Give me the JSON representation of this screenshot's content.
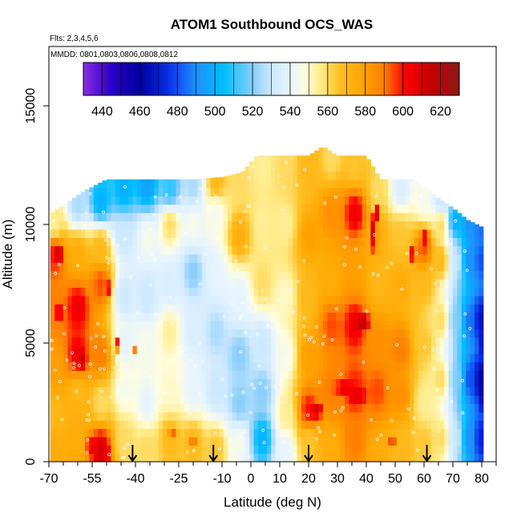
{
  "chart_data": {
    "type": "heatmap",
    "title": "ATOM1 Southbound OCS_WAS",
    "flights_note": "Flts: 2,3,4,5,6",
    "dates_note": "MMDD: 0801,0803,0806,0808,0812",
    "xlabel": "Latitude (deg N)",
    "ylabel": "Altitude (m)",
    "xlim": [
      -70,
      85
    ],
    "ylim": [
      0,
      17500
    ],
    "x_ticks": [
      -70,
      -55,
      -40,
      -25,
      -10,
      0,
      10,
      20,
      30,
      40,
      50,
      60,
      70,
      80
    ],
    "x_minor_ticks": [
      -65,
      -60,
      -50,
      -45,
      -35,
      -30,
      -20,
      -15,
      -5,
      5,
      15,
      25,
      35,
      45,
      55,
      65,
      75,
      85
    ],
    "y_ticks": [
      0,
      5000,
      10000,
      15000
    ],
    "colorbar": {
      "min": 430,
      "max": 630,
      "labels": [
        440,
        460,
        480,
        500,
        520,
        540,
        560,
        580,
        600,
        620
      ],
      "stops": [
        {
          "v": 430,
          "c": "#8a2be2"
        },
        {
          "v": 445,
          "c": "#2a00c8"
        },
        {
          "v": 460,
          "c": "#00009a"
        },
        {
          "v": 475,
          "c": "#0a2ee6"
        },
        {
          "v": 490,
          "c": "#1e90ff"
        },
        {
          "v": 505,
          "c": "#00bfff"
        },
        {
          "v": 520,
          "c": "#87cefa"
        },
        {
          "v": 530,
          "c": "#cde8ff"
        },
        {
          "v": 540,
          "c": "#e6f4ff"
        },
        {
          "v": 548,
          "c": "#fffde0"
        },
        {
          "v": 556,
          "c": "#ffec8b"
        },
        {
          "v": 566,
          "c": "#ffc125"
        },
        {
          "v": 578,
          "c": "#ffa500"
        },
        {
          "v": 590,
          "c": "#ff7f00"
        },
        {
          "v": 601,
          "c": "#ff0000"
        },
        {
          "v": 615,
          "c": "#c40000"
        },
        {
          "v": 630,
          "c": "#8b1a1a"
        }
      ]
    },
    "profile_bottoms_lat": [
      -41,
      -13,
      20,
      61
    ],
    "envelope": [
      [
        -70,
        10400
      ],
      [
        -64,
        10900
      ],
      [
        -58,
        11400
      ],
      [
        -50,
        11900
      ],
      [
        -40,
        11900
      ],
      [
        -30,
        11900
      ],
      [
        -20,
        11900
      ],
      [
        -10,
        12000
      ],
      [
        -3,
        12200
      ],
      [
        2,
        12900
      ],
      [
        10,
        12900
      ],
      [
        20,
        12900
      ],
      [
        25,
        13300
      ],
      [
        30,
        12900
      ],
      [
        40,
        12900
      ],
      [
        45,
        11900
      ],
      [
        50,
        11900
      ],
      [
        56,
        11900
      ],
      [
        60,
        11600
      ],
      [
        65,
        11100
      ],
      [
        70,
        10700
      ],
      [
        75,
        10200
      ],
      [
        80,
        9900
      ],
      [
        81,
        5000
      ],
      [
        81,
        0
      ]
    ],
    "anchors": [
      [
        -68,
        500,
        575
      ],
      [
        -68,
        2000,
        570
      ],
      [
        -68,
        4000,
        580
      ],
      [
        -68,
        6500,
        590
      ],
      [
        -68,
        8800,
        600
      ],
      [
        -68,
        10000,
        555
      ],
      [
        -60,
        800,
        575
      ],
      [
        -60,
        3000,
        570
      ],
      [
        -60,
        4500,
        605
      ],
      [
        -60,
        6500,
        605
      ],
      [
        -60,
        8800,
        575
      ],
      [
        -60,
        10800,
        525
      ],
      [
        -52,
        500,
        610
      ],
      [
        -52,
        2500,
        560
      ],
      [
        -52,
        4500,
        590
      ],
      [
        -52,
        7500,
        595
      ],
      [
        -52,
        9000,
        570
      ],
      [
        -52,
        11000,
        500
      ],
      [
        -44,
        800,
        560
      ],
      [
        -44,
        3000,
        545
      ],
      [
        -44,
        5000,
        540
      ],
      [
        -44,
        7000,
        530
      ],
      [
        -44,
        9500,
        530
      ],
      [
        -44,
        11500,
        500
      ],
      [
        -36,
        500,
        560
      ],
      [
        -36,
        2500,
        540
      ],
      [
        -36,
        5000,
        545
      ],
      [
        -36,
        7000,
        530
      ],
      [
        -36,
        9500,
        545
      ],
      [
        -36,
        11600,
        495
      ],
      [
        -28,
        1000,
        570
      ],
      [
        -28,
        3000,
        550
      ],
      [
        -28,
        5500,
        555
      ],
      [
        -28,
        7500,
        535
      ],
      [
        -28,
        10000,
        560
      ],
      [
        -28,
        11500,
        510
      ],
      [
        -20,
        800,
        570
      ],
      [
        -20,
        3000,
        540
      ],
      [
        -20,
        5500,
        535
      ],
      [
        -20,
        8000,
        520
      ],
      [
        -20,
        10000,
        545
      ],
      [
        -20,
        11600,
        525
      ],
      [
        -12,
        600,
        565
      ],
      [
        -12,
        3000,
        530
      ],
      [
        -12,
        5500,
        525
      ],
      [
        -12,
        8000,
        540
      ],
      [
        -12,
        10500,
        545
      ],
      [
        -12,
        11800,
        570
      ],
      [
        -4,
        800,
        545
      ],
      [
        -4,
        2500,
        520
      ],
      [
        -4,
        4500,
        520
      ],
      [
        -4,
        7000,
        540
      ],
      [
        -4,
        9500,
        575
      ],
      [
        -4,
        11800,
        560
      ],
      [
        4,
        1000,
        500
      ],
      [
        4,
        3000,
        520
      ],
      [
        4,
        5000,
        530
      ],
      [
        4,
        7500,
        560
      ],
      [
        4,
        10000,
        555
      ],
      [
        4,
        12500,
        555
      ],
      [
        12,
        500,
        540
      ],
      [
        12,
        2000,
        555
      ],
      [
        12,
        4500,
        545
      ],
      [
        12,
        7000,
        550
      ],
      [
        12,
        10000,
        555
      ],
      [
        12,
        12500,
        560
      ],
      [
        20,
        800,
        565
      ],
      [
        20,
        2200,
        600
      ],
      [
        20,
        4500,
        580
      ],
      [
        20,
        7000,
        570
      ],
      [
        20,
        9500,
        580
      ],
      [
        20,
        12500,
        570
      ],
      [
        28,
        600,
        575
      ],
      [
        28,
        3000,
        590
      ],
      [
        28,
        5800,
        595
      ],
      [
        28,
        7500,
        575
      ],
      [
        28,
        10500,
        585
      ],
      [
        28,
        12800,
        560
      ],
      [
        36,
        1000,
        590
      ],
      [
        36,
        3000,
        600
      ],
      [
        36,
        5800,
        605
      ],
      [
        36,
        8000,
        580
      ],
      [
        36,
        10500,
        605
      ],
      [
        36,
        12500,
        565
      ],
      [
        44,
        500,
        575
      ],
      [
        44,
        3000,
        595
      ],
      [
        44,
        5000,
        585
      ],
      [
        44,
        7500,
        570
      ],
      [
        44,
        9500,
        575
      ],
      [
        44,
        11500,
        560
      ],
      [
        52,
        600,
        570
      ],
      [
        52,
        2800,
        585
      ],
      [
        52,
        4800,
        590
      ],
      [
        52,
        7500,
        575
      ],
      [
        52,
        9500,
        565
      ],
      [
        52,
        11500,
        535
      ],
      [
        60,
        800,
        565
      ],
      [
        60,
        2500,
        555
      ],
      [
        60,
        5000,
        565
      ],
      [
        60,
        7500,
        570
      ],
      [
        60,
        9000,
        595
      ],
      [
        60,
        11000,
        545
      ],
      [
        66,
        1000,
        560
      ],
      [
        66,
        3500,
        560
      ],
      [
        66,
        6000,
        560
      ],
      [
        66,
        8500,
        570
      ],
      [
        66,
        10000,
        560
      ],
      [
        66,
        11000,
        530
      ],
      [
        71,
        1000,
        530
      ],
      [
        71,
        3500,
        520
      ],
      [
        71,
        6000,
        520
      ],
      [
        71,
        8500,
        530
      ],
      [
        71,
        10200,
        500
      ],
      [
        76,
        1000,
        490
      ],
      [
        76,
        3500,
        480
      ],
      [
        76,
        6000,
        485
      ],
      [
        76,
        8500,
        490
      ],
      [
        76,
        10000,
        490
      ],
      [
        80,
        1000,
        470
      ],
      [
        80,
        3500,
        460
      ],
      [
        80,
        6000,
        465
      ],
      [
        80,
        8500,
        480
      ],
      [
        80,
        9800,
        485
      ]
    ],
    "hotspots": [
      [
        -66.5,
        8800,
        1.5,
        300,
        618
      ],
      [
        -66.5,
        6300,
        1.8,
        300,
        612
      ],
      [
        -58.0,
        4300,
        1.5,
        300,
        612
      ],
      [
        -56.0,
        700,
        1.2,
        300,
        618
      ],
      [
        -50.0,
        400,
        1.2,
        300,
        605
      ],
      [
        -49.0,
        7300,
        1.0,
        300,
        610
      ],
      [
        -46.0,
        5000,
        1.2,
        300,
        608
      ],
      [
        -40.0,
        4800,
        1.0,
        260,
        600
      ],
      [
        -27.0,
        1200,
        2.0,
        260,
        592
      ],
      [
        -20.0,
        900,
        1.5,
        260,
        600
      ],
      [
        23.0,
        2200,
        2.5,
        300,
        612
      ],
      [
        32.0,
        3100,
        4.0,
        320,
        605
      ],
      [
        37.0,
        2800,
        4.0,
        320,
        608
      ],
      [
        39.0,
        5900,
        3.0,
        280,
        618
      ],
      [
        42.5,
        9700,
        1.5,
        800,
        612
      ],
      [
        44.0,
        10500,
        1.0,
        400,
        620
      ],
      [
        49.0,
        800,
        1.5,
        250,
        612
      ],
      [
        56.0,
        8800,
        1.5,
        350,
        610
      ],
      [
        60.5,
        9500,
        1.5,
        400,
        605
      ],
      [
        80.0,
        3000,
        0.8,
        800,
        462
      ],
      [
        80.0,
        5000,
        0.8,
        500,
        465
      ]
    ]
  }
}
